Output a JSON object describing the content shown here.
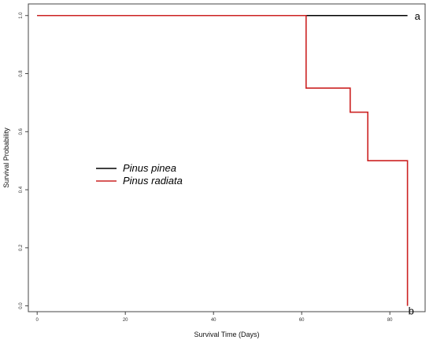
{
  "chart_data": {
    "type": "line",
    "step": true,
    "xlabel": "Survival Time (Days)",
    "ylabel": "Survival Probability",
    "xlim": [
      -2,
      88
    ],
    "ylim": [
      -0.02,
      1.04
    ],
    "x_ticks": [
      0,
      20,
      40,
      60,
      80
    ],
    "x_tick_labels": [
      "0",
      "20",
      "40",
      "60",
      "80"
    ],
    "y_ticks": [
      0.0,
      0.2,
      0.4,
      0.6,
      0.8,
      1.0
    ],
    "y_tick_labels": [
      "0.0",
      "0.2",
      "0.4",
      "0.6",
      "0.8",
      "1.0"
    ],
    "grid": false,
    "legend_position": "center-left",
    "series": [
      {
        "name": "Pinus pinea",
        "color": "#000000",
        "x": [
          0,
          84
        ],
        "y": [
          1.0,
          1.0
        ]
      },
      {
        "name": "Pinus radiata",
        "color": "#cc2222",
        "x": [
          0,
          61,
          71,
          75,
          84
        ],
        "y": [
          1.0,
          0.75,
          0.667,
          0.5,
          0.0
        ]
      }
    ],
    "annotations": [
      {
        "text": "a",
        "x": 84,
        "y": 1.0
      },
      {
        "text": "b",
        "x": 84,
        "y": 0.0
      }
    ]
  }
}
